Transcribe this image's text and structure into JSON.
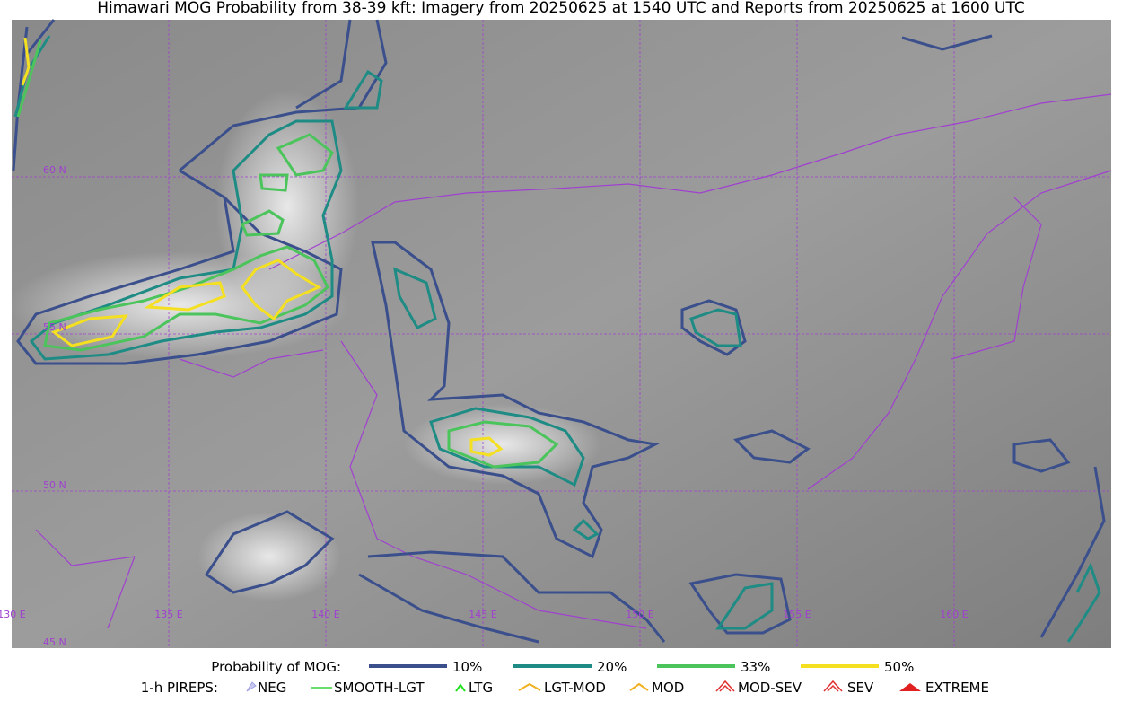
{
  "title": "Himawari MOG Probability from 38-39 kft: Imagery from 20250625 at 1540 UTC and Reports from 20250625 at 1600 UTC",
  "grid_labels": {
    "latitude": [
      "60 N",
      "55 N",
      "50 N",
      "45 N"
    ],
    "longitude": [
      "130 E",
      "135 E",
      "140 E",
      "145 E",
      "150 E",
      "155 E",
      "160 E"
    ]
  },
  "legend": {
    "probability": {
      "label": "Probability of MOG:",
      "items": [
        "10%",
        "20%",
        "33%",
        "50%"
      ]
    },
    "pireps": {
      "label": "1-h PIREPS:",
      "items": [
        "NEG",
        "SMOOTH-LGT",
        "LTG",
        "LGT-MOD",
        "MOD",
        "MOD-SEV",
        "SEV",
        "EXTREME"
      ]
    }
  }
}
